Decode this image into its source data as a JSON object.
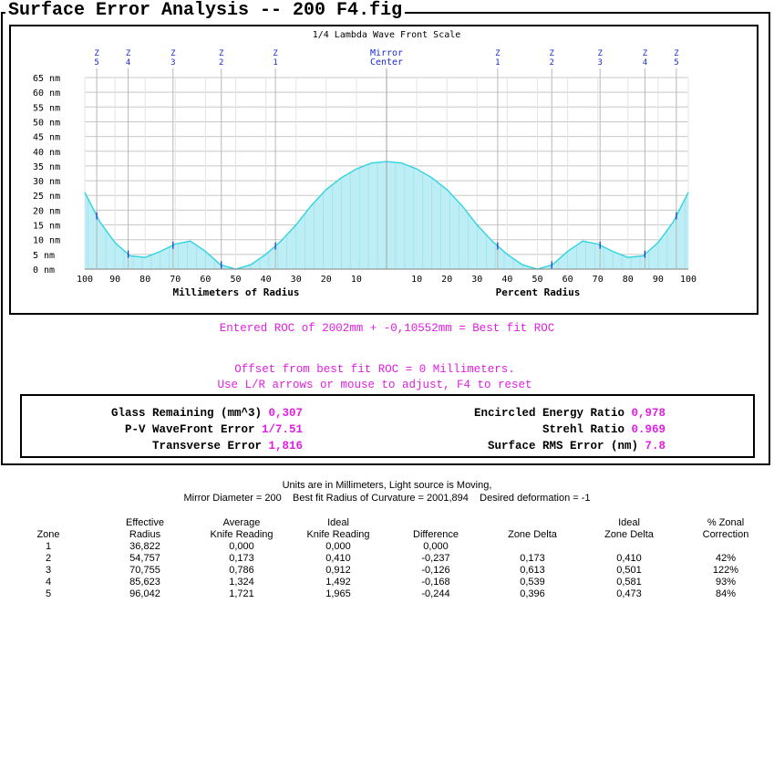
{
  "window": {
    "title": "Surface Error Analysis -- 200 F4.fig"
  },
  "chart_data": {
    "type": "area",
    "title": "1/4 Lambda Wave Front Scale",
    "center_label": [
      "Mirror",
      "Center"
    ],
    "y_ticks": [
      "65 nm",
      "60 nm",
      "55 nm",
      "50 nm",
      "45 nm",
      "40 nm",
      "35 nm",
      "30 nm",
      "25 nm",
      "20 nm",
      "15 nm",
      "10 nm",
      "5 nm",
      "0 nm"
    ],
    "ylim": [
      0,
      65
    ],
    "left_x_ticks": [
      "100",
      "90",
      "80",
      "70",
      "60",
      "50",
      "40",
      "30",
      "20",
      "10"
    ],
    "right_x_ticks": [
      "10",
      "20",
      "30",
      "40",
      "50",
      "60",
      "70",
      "80",
      "90",
      "100"
    ],
    "left_xlabel": "Millimeters of Radius",
    "right_xlabel": "Percent Radius",
    "zones_left": [
      {
        "label": [
          "Z",
          "5"
        ],
        "percent": 96.042
      },
      {
        "label": [
          "Z",
          "4"
        ],
        "percent": 85.623
      },
      {
        "label": [
          "Z",
          "3"
        ],
        "percent": 70.755
      },
      {
        "label": [
          "Z",
          "2"
        ],
        "percent": 54.757
      },
      {
        "label": [
          "Z",
          "1"
        ],
        "percent": 36.822
      }
    ],
    "zones_right": [
      {
        "label": [
          "Z",
          "1"
        ],
        "percent": 36.822
      },
      {
        "label": [
          "Z",
          "2"
        ],
        "percent": 54.757
      },
      {
        "label": [
          "Z",
          "3"
        ],
        "percent": 70.755
      },
      {
        "label": [
          "Z",
          "4"
        ],
        "percent": 85.623
      },
      {
        "label": [
          "Z",
          "5"
        ],
        "percent": 96.042
      }
    ],
    "series": [
      {
        "x_percent": [
          0,
          5,
          10,
          15,
          20,
          25,
          30,
          35,
          40,
          45,
          50,
          55,
          60,
          65,
          70,
          75,
          80,
          85,
          90,
          95,
          100
        ],
        "y_nm": [
          36.5,
          36,
          34,
          31,
          27,
          21.5,
          15,
          9.5,
          5,
          1.5,
          0,
          1.5,
          6,
          9.5,
          8.5,
          6,
          4,
          4.5,
          9,
          16,
          26
        ]
      }
    ],
    "colors": {
      "fill": "#bdeef5",
      "line": "#30d4e0",
      "zone_label": "#1a2ad0",
      "tick_mark": "#1a2ad0"
    }
  },
  "roc_line": "Entered ROC of 2002mm + -0,10552mm = Best fit ROC",
  "offset_line1": "Offset from best fit ROC = 0 Millimeters.",
  "offset_line2": "Use L/R arrows or mouse to adjust, F4 to reset",
  "stats": {
    "glass_label": "Glass Remaining (mm^3)",
    "glass_value": "0,307",
    "pv_label": "P-V WaveFront Error",
    "pv_value": "1/7.51",
    "transverse_label": "Transverse Error",
    "transverse_value": "1,816",
    "energy_label": "Encircled Energy Ratio",
    "energy_value": "0,978",
    "strehl_label": "Strehl Ratio",
    "strehl_value": "0.969",
    "rms_label": "Surface RMS Error (nm)",
    "rms_value": "7.8"
  },
  "report": {
    "line1": "Units are in Millimeters, Light source is Moving,",
    "line2": "Mirror Diameter = 200    Best fit Radius of Curvature = 2001,894    Desired deformation = -1",
    "columns": [
      {
        "header": [
          "",
          "Zone"
        ],
        "values": [
          "1",
          "2",
          "3",
          "4",
          "5"
        ]
      },
      {
        "header": [
          "Effective",
          "Radius"
        ],
        "values": [
          "36,822",
          "54,757",
          "70,755",
          "85,623",
          "96,042"
        ]
      },
      {
        "header": [
          "Average",
          "Knife Reading"
        ],
        "values": [
          "0,000",
          "0,173",
          "0,786",
          "1,324",
          "1,721"
        ]
      },
      {
        "header": [
          "Ideal",
          "Knife Reading"
        ],
        "values": [
          "0,000",
          "0,410",
          "0,912",
          "1,492",
          "1,965"
        ]
      },
      {
        "header": [
          "",
          "Difference"
        ],
        "values": [
          "0,000",
          "-0,237",
          "-0,126",
          "-0,168",
          "-0,244"
        ]
      },
      {
        "header": [
          "",
          "Zone Delta"
        ],
        "values": [
          "",
          "0,173",
          "0,613",
          "0,539",
          "0,396"
        ]
      },
      {
        "header": [
          "Ideal",
          "Zone Delta"
        ],
        "values": [
          "",
          "0,410",
          "0,501",
          "0,581",
          "0,473"
        ]
      },
      {
        "header": [
          "% Zonal",
          "Correction"
        ],
        "values": [
          "",
          "42%",
          "122%",
          "93%",
          "84%"
        ]
      }
    ]
  }
}
